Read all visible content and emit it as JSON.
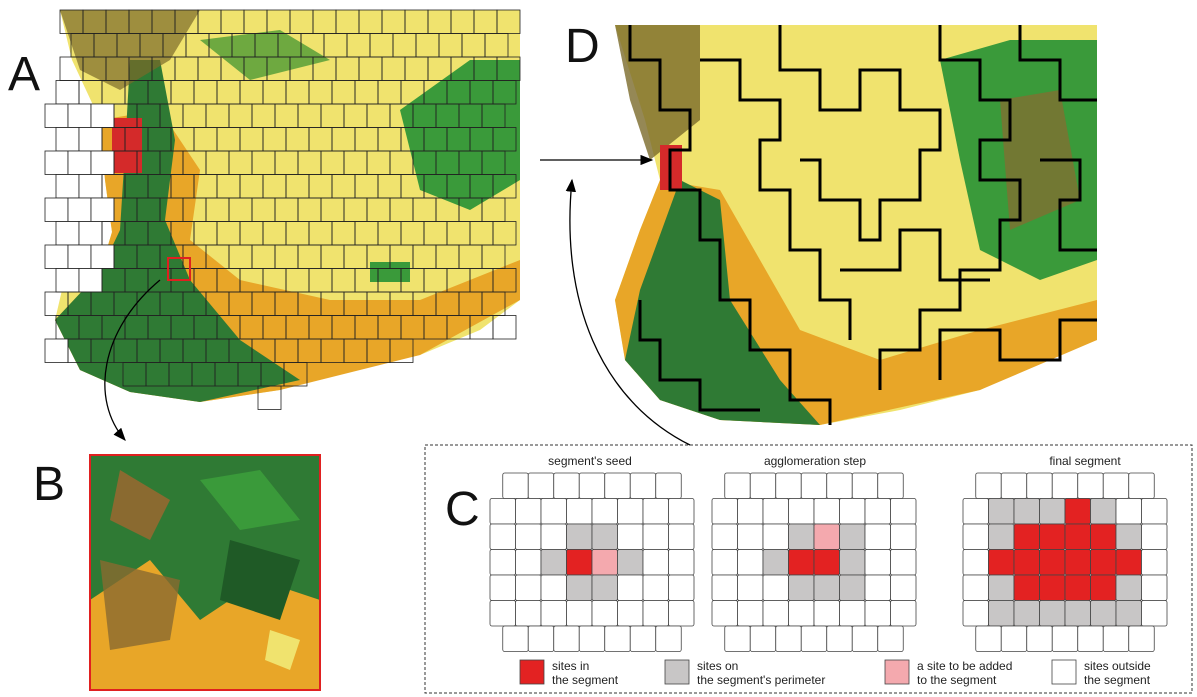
{
  "panels": {
    "a": {
      "label": "A"
    },
    "b": {
      "label": "B"
    },
    "c": {
      "label": "C",
      "steps": [
        {
          "title": "segment's seed"
        },
        {
          "title": "agglomeration step"
        },
        {
          "title": "final segment"
        }
      ],
      "legend": [
        {
          "lines": [
            "sites in",
            "the segment"
          ]
        },
        {
          "lines": [
            "sites on",
            "the segment's perimeter"
          ]
        },
        {
          "lines": [
            "a site to be added",
            "to the segment"
          ]
        },
        {
          "lines": [
            "sites outside",
            "the segment"
          ]
        }
      ]
    },
    "d": {
      "label": "D"
    }
  }
}
